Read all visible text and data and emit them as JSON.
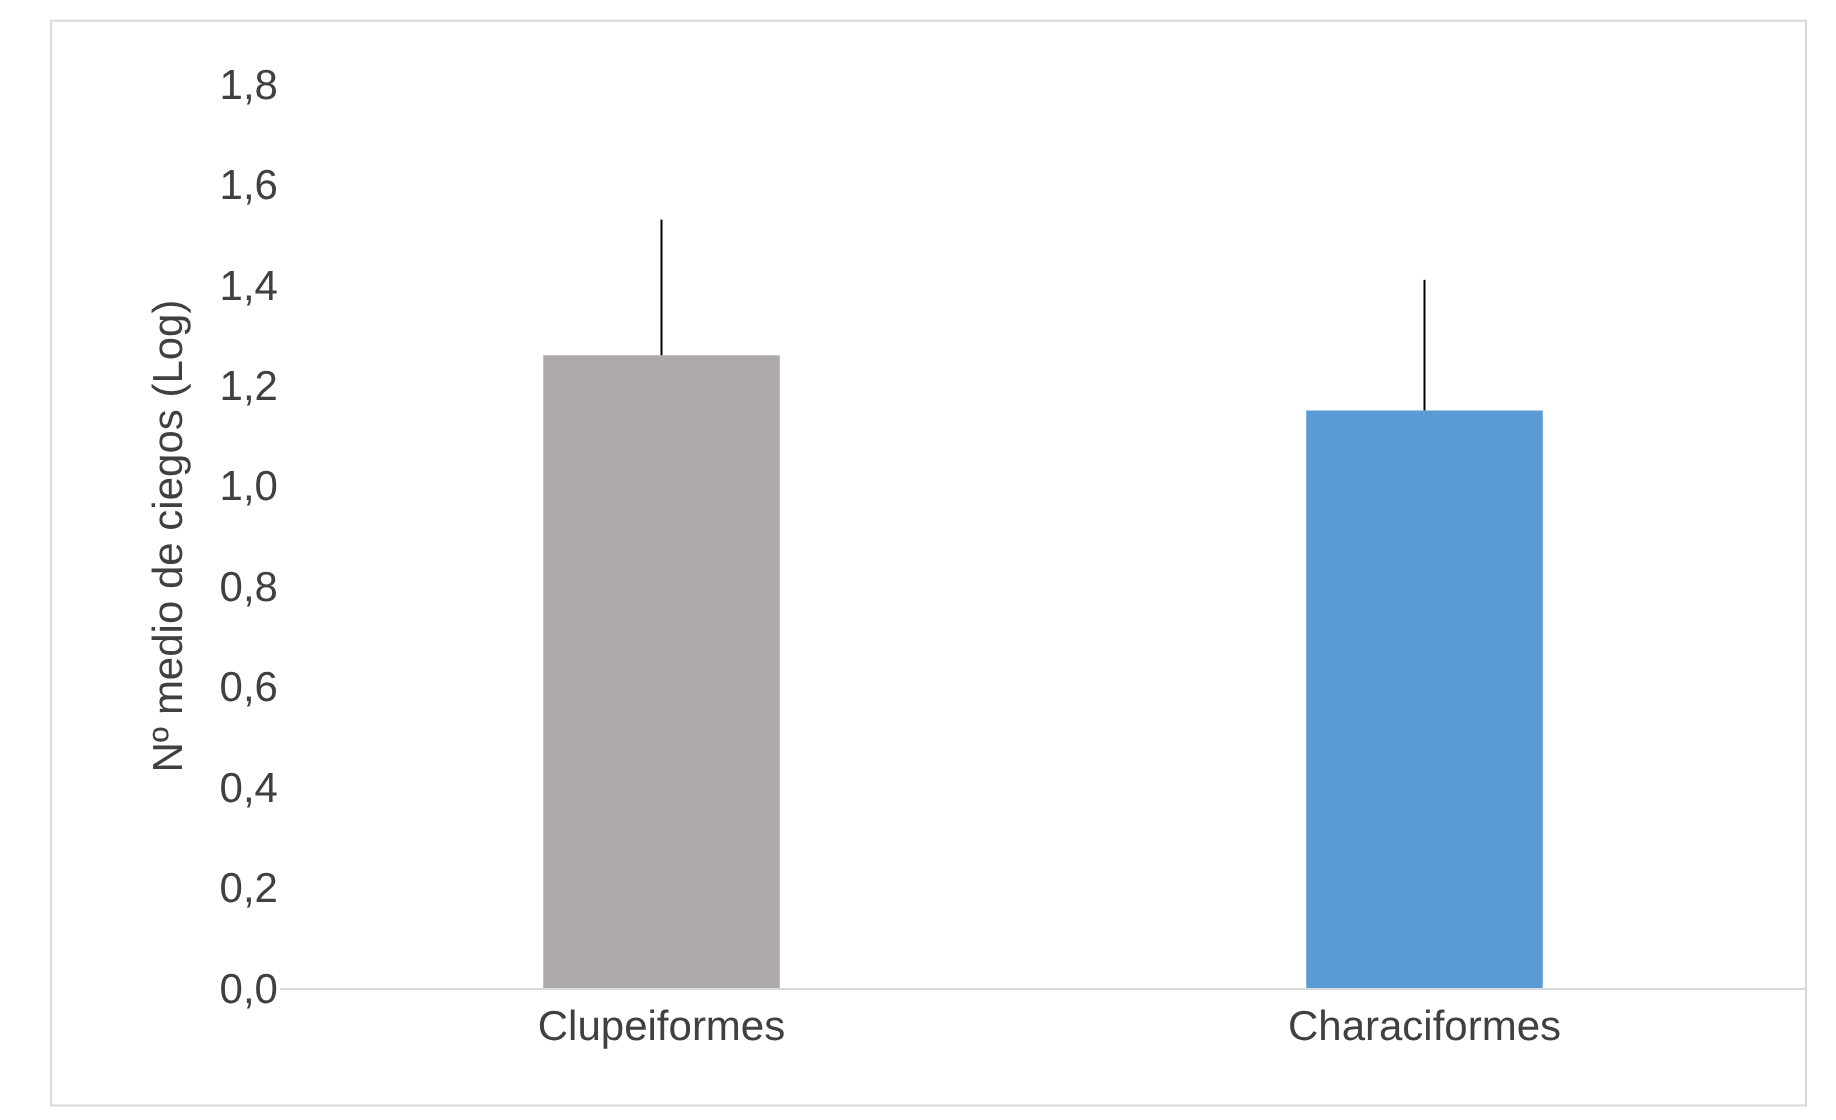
{
  "chart_data": {
    "type": "bar",
    "ylabel": "Nº medio de ciegos (Log)",
    "categories": [
      "Clupeiformes",
      "Characiformes"
    ],
    "values": [
      1.26,
      1.15
    ],
    "colors": [
      "#aeaaaa",
      "#5b9bd5"
    ],
    "errors": [
      [
        1.26,
        1.53
      ],
      [
        1.15,
        1.41
      ]
    ],
    "ylim": [
      0,
      1.8
    ],
    "yticks": [
      {
        "value": 0,
        "label": "0,0"
      },
      {
        "value": 0.2,
        "label": "0,2"
      },
      {
        "value": 0.4,
        "label": "0,4"
      },
      {
        "value": 0.6,
        "label": "0,6"
      },
      {
        "value": 0.8,
        "label": "0,8"
      },
      {
        "value": 1.0,
        "label": "1,0"
      },
      {
        "value": 1.2,
        "label": "1,2"
      },
      {
        "value": 1.4,
        "label": "1,4"
      },
      {
        "value": 1.6,
        "label": "1,6"
      },
      {
        "value": 1.8,
        "label": "1,8"
      }
    ],
    "grid": false,
    "legend": false
  }
}
